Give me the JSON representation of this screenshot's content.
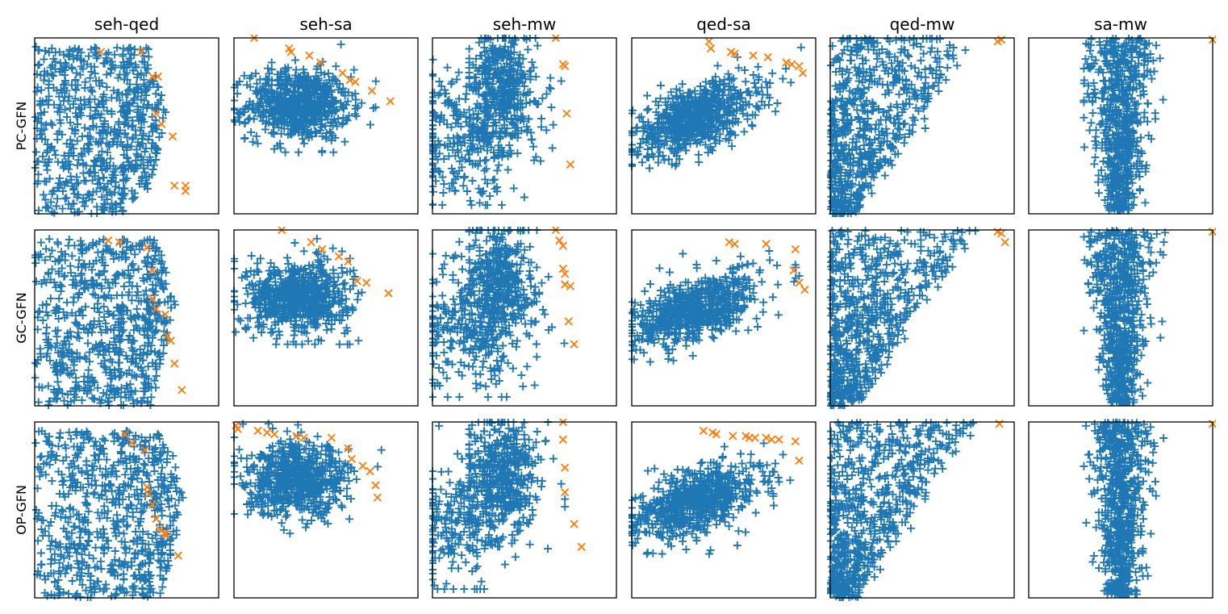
{
  "chart_data": {
    "type": "scatter",
    "title": "",
    "columns": [
      "seh-qed",
      "seh-sa",
      "seh-mw",
      "qed-sa",
      "qed-mw",
      "sa-mw"
    ],
    "rows": [
      "PC-GFN",
      "GC-GFN",
      "OP-GFN"
    ],
    "axis_ticks": "none",
    "grid": false,
    "series": [
      {
        "name": "samples",
        "marker": "plus",
        "color": "#1f77b4"
      },
      {
        "name": "pareto_front",
        "marker": "x",
        "color": "#ff7f0e"
      }
    ],
    "ylim": [
      0,
      1
    ],
    "xlim": [
      0,
      1
    ],
    "panels": [
      {
        "row": "PC-GFN",
        "col": "seh-qed",
        "pareto": [
          [
            0.36,
            0.92
          ],
          [
            0.58,
            0.92
          ],
          [
            0.64,
            0.78
          ],
          [
            0.67,
            0.78
          ],
          [
            0.66,
            0.57
          ],
          [
            0.69,
            0.51
          ],
          [
            0.75,
            0.44
          ],
          [
            0.76,
            0.16
          ],
          [
            0.82,
            0.16
          ],
          [
            0.82,
            0.13
          ]
        ]
      },
      {
        "row": "PC-GFN",
        "col": "seh-sa",
        "pareto": [
          [
            0.11,
            1.0
          ],
          [
            0.3,
            0.94
          ],
          [
            0.31,
            0.92
          ],
          [
            0.41,
            0.9
          ],
          [
            0.47,
            0.86
          ],
          [
            0.59,
            0.8
          ],
          [
            0.63,
            0.76
          ],
          [
            0.66,
            0.75
          ],
          [
            0.75,
            0.7
          ],
          [
            0.85,
            0.64
          ]
        ]
      },
      {
        "row": "PC-GFN",
        "col": "seh-mw",
        "pareto": [
          [
            0.67,
            1.0
          ],
          [
            0.71,
            0.85
          ],
          [
            0.72,
            0.84
          ],
          [
            0.73,
            0.57
          ],
          [
            0.75,
            0.28
          ]
        ]
      },
      {
        "row": "PC-GFN",
        "col": "qed-sa",
        "pareto": [
          [
            0.42,
            0.98
          ],
          [
            0.43,
            0.94
          ],
          [
            0.54,
            0.92
          ],
          [
            0.56,
            0.91
          ],
          [
            0.66,
            0.9
          ],
          [
            0.74,
            0.89
          ],
          [
            0.84,
            0.86
          ],
          [
            0.87,
            0.85
          ],
          [
            0.91,
            0.84
          ],
          [
            0.93,
            0.8
          ]
        ]
      },
      {
        "row": "PC-GFN",
        "col": "qed-mw",
        "pareto": [
          [
            0.91,
            0.98
          ],
          [
            0.93,
            0.99
          ]
        ]
      },
      {
        "row": "PC-GFN",
        "col": "sa-mw",
        "pareto": [
          [
            1.0,
            0.99
          ]
        ]
      },
      {
        "row": "GC-GFN",
        "col": "seh-qed",
        "pareto": [
          [
            0.4,
            0.94
          ],
          [
            0.46,
            0.93
          ],
          [
            0.61,
            0.9
          ],
          [
            0.64,
            0.77
          ],
          [
            0.64,
            0.61
          ],
          [
            0.66,
            0.55
          ],
          [
            0.71,
            0.52
          ],
          [
            0.72,
            0.4
          ],
          [
            0.74,
            0.37
          ],
          [
            0.76,
            0.24
          ],
          [
            0.8,
            0.09
          ]
        ]
      },
      {
        "row": "GC-GFN",
        "col": "seh-sa",
        "pareto": [
          [
            0.26,
            1.0
          ],
          [
            0.42,
            0.93
          ],
          [
            0.48,
            0.89
          ],
          [
            0.57,
            0.85
          ],
          [
            0.62,
            0.82
          ],
          [
            0.67,
            0.71
          ],
          [
            0.72,
            0.7
          ],
          [
            0.84,
            0.64
          ]
        ]
      },
      {
        "row": "GC-GFN",
        "col": "seh-mw",
        "pareto": [
          [
            0.67,
            1.0
          ],
          [
            0.69,
            0.94
          ],
          [
            0.71,
            0.91
          ],
          [
            0.71,
            0.78
          ],
          [
            0.72,
            0.75
          ],
          [
            0.72,
            0.69
          ],
          [
            0.75,
            0.68
          ],
          [
            0.74,
            0.48
          ],
          [
            0.77,
            0.35
          ]
        ]
      },
      {
        "row": "GC-GFN",
        "col": "qed-sa",
        "pareto": [
          [
            0.53,
            0.93
          ],
          [
            0.56,
            0.92
          ],
          [
            0.73,
            0.92
          ],
          [
            0.89,
            0.89
          ],
          [
            0.88,
            0.77
          ],
          [
            0.91,
            0.7
          ],
          [
            0.94,
            0.66
          ]
        ]
      },
      {
        "row": "GC-GFN",
        "col": "qed-mw",
        "pareto": [
          [
            0.91,
            0.99
          ],
          [
            0.93,
            0.98
          ],
          [
            0.95,
            0.93
          ]
        ]
      },
      {
        "row": "GC-GFN",
        "col": "sa-mw",
        "pareto": [
          [
            1.0,
            0.99
          ]
        ]
      },
      {
        "row": "OP-GFN",
        "col": "seh-qed",
        "pareto": [
          [
            0.49,
            0.93
          ],
          [
            0.53,
            0.88
          ],
          [
            0.6,
            0.84
          ],
          [
            0.61,
            0.63
          ],
          [
            0.62,
            0.59
          ],
          [
            0.64,
            0.53
          ],
          [
            0.66,
            0.45
          ],
          [
            0.68,
            0.39
          ],
          [
            0.71,
            0.37
          ],
          [
            0.71,
            0.36
          ],
          [
            0.78,
            0.24
          ]
        ]
      },
      {
        "row": "OP-GFN",
        "col": "seh-sa",
        "pareto": [
          [
            0.01,
            0.98
          ],
          [
            0.02,
            0.96
          ],
          [
            0.13,
            0.95
          ],
          [
            0.18,
            0.94
          ],
          [
            0.22,
            0.93
          ],
          [
            0.34,
            0.92
          ],
          [
            0.38,
            0.91
          ],
          [
            0.53,
            0.91
          ],
          [
            0.62,
            0.85
          ],
          [
            0.64,
            0.79
          ],
          [
            0.7,
            0.75
          ],
          [
            0.74,
            0.72
          ],
          [
            0.77,
            0.64
          ],
          [
            0.78,
            0.57
          ]
        ]
      },
      {
        "row": "OP-GFN",
        "col": "seh-mw",
        "pareto": [
          [
            0.71,
            1.0
          ],
          [
            0.71,
            0.9
          ],
          [
            0.72,
            0.74
          ],
          [
            0.72,
            0.6
          ],
          [
            0.77,
            0.42
          ],
          [
            0.81,
            0.29
          ]
        ]
      },
      {
        "row": "OP-GFN",
        "col": "qed-sa",
        "pareto": [
          [
            0.39,
            0.95
          ],
          [
            0.44,
            0.94
          ],
          [
            0.46,
            0.93
          ],
          [
            0.55,
            0.92
          ],
          [
            0.62,
            0.92
          ],
          [
            0.64,
            0.91
          ],
          [
            0.67,
            0.91
          ],
          [
            0.73,
            0.91
          ],
          [
            0.76,
            0.9
          ],
          [
            0.8,
            0.9
          ],
          [
            0.89,
            0.89
          ],
          [
            0.91,
            0.78
          ]
        ]
      },
      {
        "row": "OP-GFN",
        "col": "qed-mw",
        "pareto": [
          [
            0.92,
            0.99
          ]
        ]
      },
      {
        "row": "OP-GFN",
        "col": "sa-mw",
        "pareto": [
          [
            1.0,
            0.99
          ]
        ]
      }
    ]
  }
}
